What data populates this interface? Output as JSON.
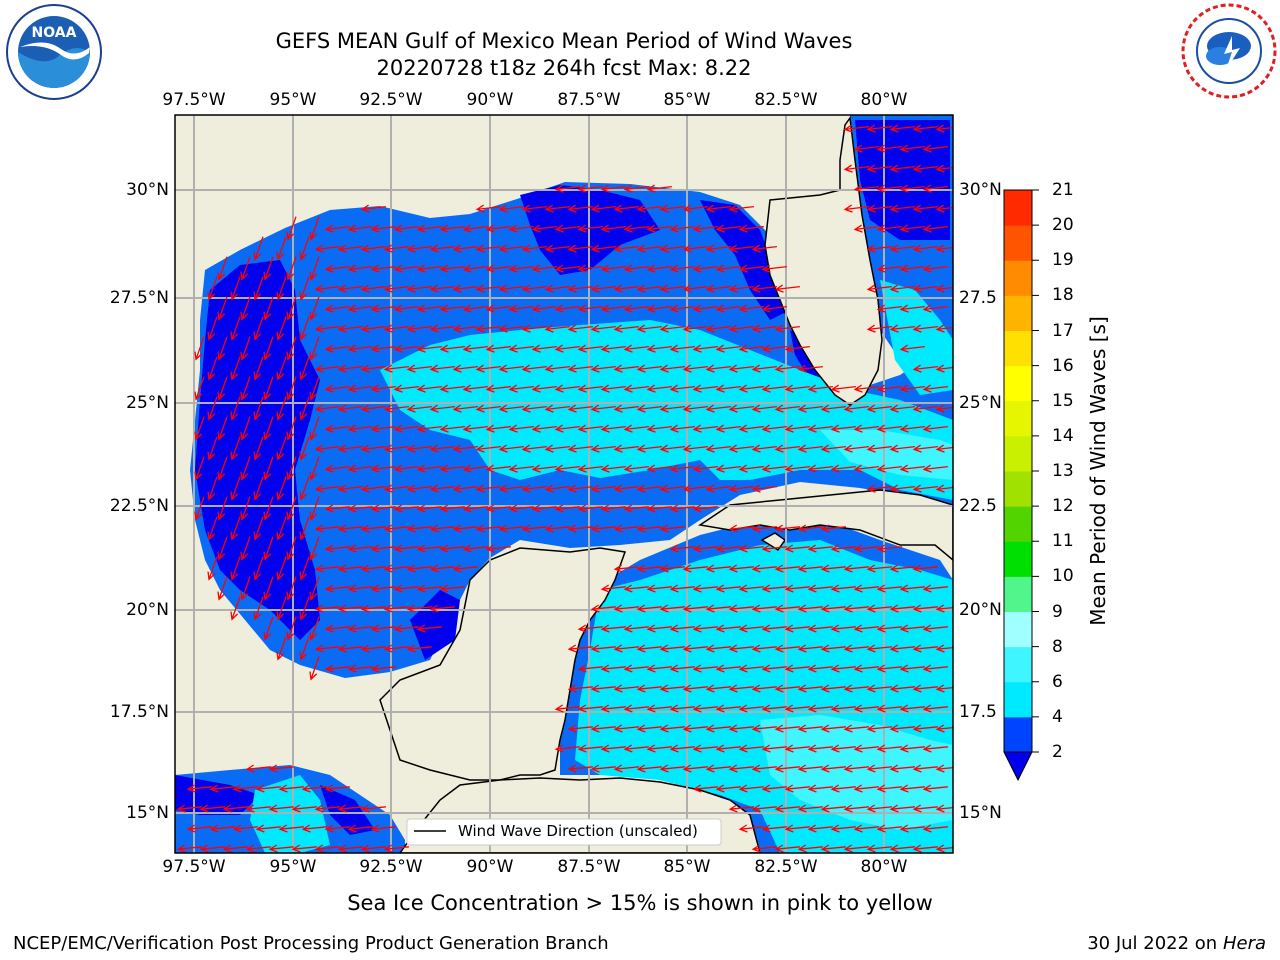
{
  "title": {
    "line1": "GEFS MEAN Gulf of Mexico Mean Period of Wind Waves",
    "line2": "20220728 t18z 264h fcst   Max: 8.22"
  },
  "logos": {
    "left": {
      "name": "NOARA",
      "text": "NOAA",
      "ring_text": "NATIONAL OCEANIC AND ATMOSPHERIC ADMINISTRATION · U.S. DEPARTMENT OF COMMERCE"
    },
    "right": {
      "name": "national-weather-service",
      "ring_text": "NATIONAL WEATHER SERVICE"
    }
  },
  "map": {
    "lon_labels": [
      "97.5°W",
      "95°W",
      "92.5°W",
      "90°W",
      "87.5°W",
      "85°W",
      "82.5°W",
      "80°W"
    ],
    "lat_labels": [
      "30°N",
      "27.5°N",
      "25°N",
      "22.5°N",
      "20°N",
      "17.5°N",
      "15°N"
    ],
    "lat_labels_right": [
      "30°N",
      "27.5",
      "25°N",
      "22.5",
      "20°N",
      "17.5",
      "15°N"
    ],
    "legend_label": "Wind Wave Direction (unscaled)",
    "colors": {
      "land": "#efeddc",
      "grid": "#b0b0b0",
      "arrow": "#ff0000",
      "coast": "#000000"
    }
  },
  "colorbar": {
    "label": "Mean Period of Wind Waves [s]",
    "ticks": [
      "2",
      "4",
      "6",
      "8",
      "9",
      "10",
      "11",
      "12",
      "13",
      "14",
      "15",
      "16",
      "17",
      "18",
      "19",
      "20",
      "21"
    ],
    "colors": [
      "#0044ff",
      "#00eaff",
      "#3ff5ff",
      "#a0ffff",
      "#50f58c",
      "#00e000",
      "#52d400",
      "#a0e100",
      "#c8f000",
      "#e6f500",
      "#ffff00",
      "#ffe000",
      "#ffb400",
      "#ff8c00",
      "#ff5500",
      "#ff2a00",
      "#ff0000"
    ],
    "extend_color": "#0000ee"
  },
  "footer": {
    "note": "Sea Ice Concentration > 15% is shown in pink to yellow",
    "left": "NCEP/EMC/Verification Post Processing Product Generation Branch",
    "right_date": "30 Jul 2022 on ",
    "right_machine": "Hera"
  }
}
